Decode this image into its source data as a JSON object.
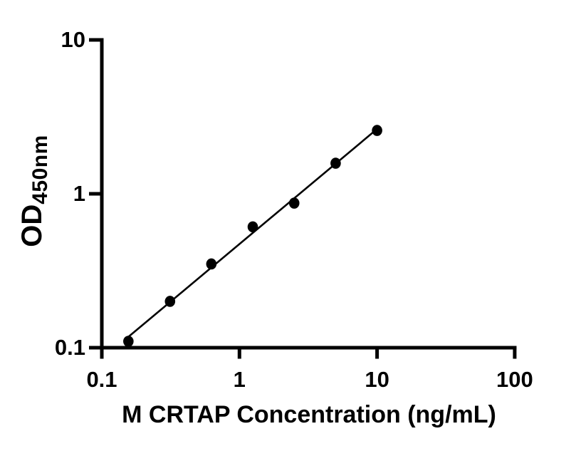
{
  "figure": {
    "background": "#ffffff",
    "axis_color": "#000000",
    "point_color": "#000000",
    "trend_line_color": "#000000"
  },
  "chart_data": {
    "type": "scatter",
    "title": "",
    "xlabel": "M CRTAP Concentration (ng/mL)",
    "ylabel_main": "OD",
    "ylabel_sub": "450nm",
    "x_scale": "log10",
    "y_scale": "log10",
    "xlim": [
      0.1,
      100
    ],
    "ylim": [
      0.1,
      10
    ],
    "x_ticks": [
      "0.1",
      "1",
      "10",
      "100"
    ],
    "y_ticks": [
      "10",
      "1",
      "0.1"
    ],
    "grid": false,
    "legend": "none",
    "marker": "filled-circle",
    "trend_line": "log-log linear fit through points",
    "points": [
      {
        "x": 0.156,
        "y": 0.11
      },
      {
        "x": 0.313,
        "y": 0.2
      },
      {
        "x": 0.625,
        "y": 0.35
      },
      {
        "x": 1.25,
        "y": 0.61
      },
      {
        "x": 2.5,
        "y": 0.87
      },
      {
        "x": 5.0,
        "y": 1.58
      },
      {
        "x": 10.0,
        "y": 2.58
      }
    ]
  }
}
